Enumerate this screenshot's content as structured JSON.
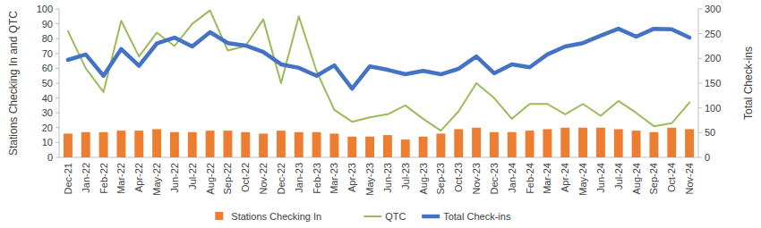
{
  "chart_data": {
    "type": "bar",
    "y_label": "Stations Checking In and QTC",
    "y2_label": "Total Check-ins",
    "categories": [
      "Dec-21",
      "Jan-22",
      "Feb-22",
      "Mar-22",
      "Apr-22",
      "May-22",
      "Jun-22",
      "Jul-22",
      "Aug-22",
      "Sep-22",
      "Oct-22",
      "Nov-22",
      "Dec-22",
      "Jan-23",
      "Feb-23",
      "Mar-23",
      "Apr-23",
      "May-23",
      "Jun-23",
      "Jul-23",
      "Aug-23",
      "Sep-23",
      "Oct-23",
      "Nov-23",
      "Dec-23",
      "Jan-24",
      "Feb-24",
      "Mar-24",
      "Apr-24",
      "May-24",
      "Jun-24",
      "Jul-24",
      "Aug-24",
      "Sep-24",
      "Oct-24",
      "Nov-24"
    ],
    "series": [
      {
        "name": "Stations Checking In",
        "type": "bar",
        "color": "#ed7d31",
        "values": [
          16,
          17,
          17,
          18,
          18,
          19,
          17,
          17,
          18,
          18,
          17,
          16,
          18,
          17,
          17,
          16,
          14,
          14,
          15,
          12,
          14,
          16,
          19,
          20,
          17,
          17,
          18,
          19,
          20,
          20,
          20,
          19,
          18,
          17,
          20,
          19
        ]
      },
      {
        "name": "QTC",
        "type": "line",
        "color": "#9bbb59",
        "values": [
          85,
          60,
          44,
          92,
          68,
          84,
          75,
          90,
          99,
          72,
          75,
          93,
          50,
          95,
          58,
          32,
          24,
          27,
          29,
          35,
          26,
          18,
          31,
          50,
          40,
          26,
          36,
          36,
          29,
          36,
          28,
          38,
          30,
          21,
          23,
          37
        ]
      },
      {
        "name": "Total Check-ins",
        "type": "line",
        "axis": "y2",
        "color": "#4472c4",
        "values": [
          197,
          208,
          165,
          219,
          185,
          230,
          242,
          224,
          253,
          231,
          226,
          213,
          188,
          181,
          165,
          186,
          139,
          184,
          177,
          168,
          175,
          168,
          179,
          204,
          170,
          188,
          182,
          208,
          224,
          231,
          246,
          260,
          244,
          260,
          259,
          242
        ]
      }
    ],
    "ylim": [
      0,
      100
    ],
    "yticks": [
      0,
      10,
      20,
      30,
      40,
      50,
      60,
      70,
      80,
      90,
      100
    ],
    "y2lim": [
      0,
      300
    ],
    "y2ticks": [
      0,
      50,
      100,
      150,
      200,
      250,
      300
    ],
    "grid": false,
    "legend": "bottom"
  }
}
